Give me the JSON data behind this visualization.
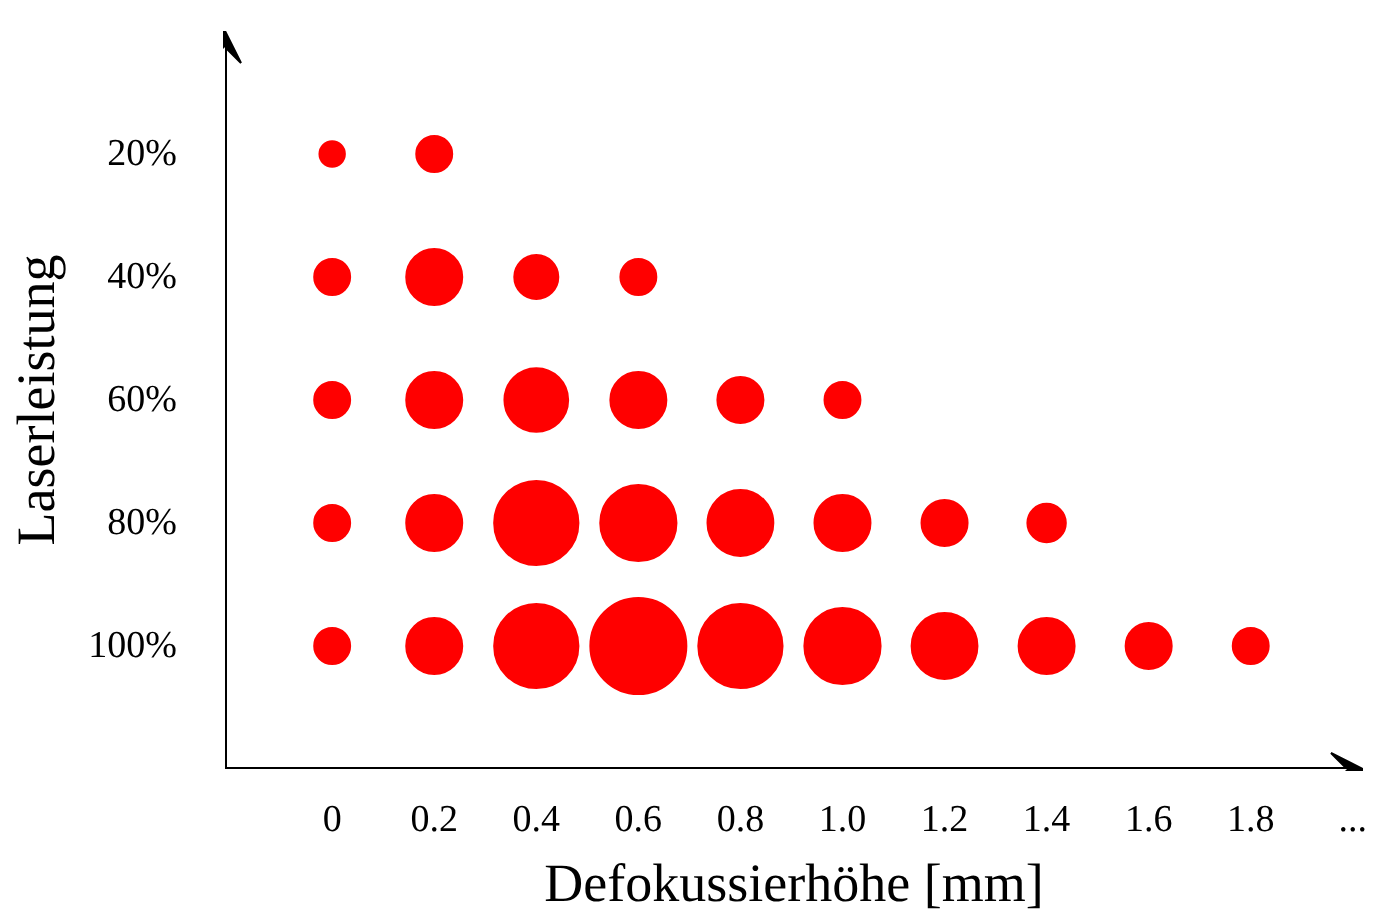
{
  "chart_data": {
    "type": "bubble",
    "xlabel": "Defokussierhöhe [mm]",
    "ylabel": "Laserleistung",
    "categories": [
      "0",
      "0.2",
      "0.4",
      "0.6",
      "0.8",
      "1.0",
      "1.2",
      "1.4",
      "1.6",
      "1.8",
      "..."
    ],
    "ylim": [
      120,
      0
    ],
    "yticks": [
      {
        "value": 20,
        "label": "20%"
      },
      {
        "value": 40,
        "label": "40%"
      },
      {
        "value": 60,
        "label": "60%"
      },
      {
        "value": 80,
        "label": "80%"
      },
      {
        "value": 100,
        "label": "100%"
      }
    ],
    "series": [
      {
        "color": "#ff0000",
        "values": [
          20,
          20,
          null,
          null,
          null,
          null,
          null,
          null,
          null,
          null,
          null
        ],
        "sizes": [
          0.07,
          0.14,
          null,
          null,
          null,
          null,
          null,
          null,
          null,
          null,
          null
        ]
      },
      {
        "color": "#ff0000",
        "values": [
          40,
          40,
          40,
          40,
          null,
          null,
          null,
          null,
          null,
          null,
          null
        ],
        "sizes": [
          0.14,
          0.34,
          0.21,
          0.14,
          null,
          null,
          null,
          null,
          null,
          null,
          null
        ]
      },
      {
        "color": "#ff0000",
        "values": [
          60,
          60,
          60,
          60,
          60,
          60,
          null,
          null,
          null,
          null,
          null
        ],
        "sizes": [
          0.14,
          0.34,
          0.44,
          0.34,
          0.23,
          0.14,
          null,
          null,
          null,
          null,
          null
        ]
      },
      {
        "color": "#ff0000",
        "values": [
          80,
          80,
          80,
          80,
          80,
          80,
          80,
          80,
          null,
          null,
          null
        ],
        "sizes": [
          0.14,
          0.34,
          0.77,
          0.63,
          0.47,
          0.34,
          0.23,
          0.16,
          null,
          null,
          null
        ]
      },
      {
        "color": "#ff0000",
        "values": [
          100,
          100,
          100,
          100,
          100,
          100,
          100,
          100,
          100,
          100,
          null
        ],
        "sizes": [
          0.14,
          0.34,
          0.77,
          1,
          0.77,
          0.63,
          0.47,
          0.34,
          0.23,
          0.14,
          null
        ]
      }
    ]
  }
}
